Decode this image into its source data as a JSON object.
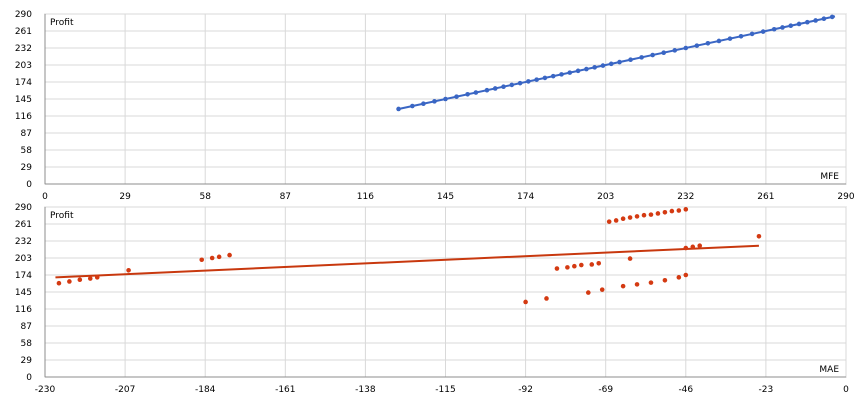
{
  "chart_data": [
    {
      "type": "scatter",
      "ylabel": "Profit",
      "xlabel": "MFE",
      "xlim": [
        0,
        290
      ],
      "ylim": [
        0,
        290
      ],
      "xticks": [
        0,
        29,
        58,
        87,
        116,
        145,
        174,
        203,
        232,
        261,
        290
      ],
      "yticks": [
        0,
        29,
        58,
        87,
        116,
        145,
        174,
        203,
        232,
        261,
        290
      ],
      "grid": true,
      "point_color": "#3a66c4",
      "trend_color": "#3a66c4",
      "trend": {
        "x": [
          128,
          286
        ],
        "y": [
          128,
          286
        ]
      },
      "points": [
        {
          "x": 128,
          "y": 128
        },
        {
          "x": 133,
          "y": 133
        },
        {
          "x": 137,
          "y": 137
        },
        {
          "x": 141,
          "y": 141
        },
        {
          "x": 145,
          "y": 145
        },
        {
          "x": 149,
          "y": 149
        },
        {
          "x": 153,
          "y": 153
        },
        {
          "x": 156,
          "y": 156
        },
        {
          "x": 160,
          "y": 160
        },
        {
          "x": 163,
          "y": 163
        },
        {
          "x": 166,
          "y": 166
        },
        {
          "x": 169,
          "y": 169
        },
        {
          "x": 172,
          "y": 172
        },
        {
          "x": 175,
          "y": 175
        },
        {
          "x": 178,
          "y": 178
        },
        {
          "x": 181,
          "y": 181
        },
        {
          "x": 184,
          "y": 184
        },
        {
          "x": 187,
          "y": 187
        },
        {
          "x": 190,
          "y": 190
        },
        {
          "x": 193,
          "y": 193
        },
        {
          "x": 196,
          "y": 196
        },
        {
          "x": 199,
          "y": 199
        },
        {
          "x": 202,
          "y": 202
        },
        {
          "x": 205,
          "y": 205
        },
        {
          "x": 208,
          "y": 208
        },
        {
          "x": 212,
          "y": 212
        },
        {
          "x": 216,
          "y": 216
        },
        {
          "x": 220,
          "y": 220
        },
        {
          "x": 224,
          "y": 224
        },
        {
          "x": 228,
          "y": 228
        },
        {
          "x": 232,
          "y": 232
        },
        {
          "x": 236,
          "y": 236
        },
        {
          "x": 240,
          "y": 240
        },
        {
          "x": 244,
          "y": 244
        },
        {
          "x": 248,
          "y": 248
        },
        {
          "x": 252,
          "y": 252
        },
        {
          "x": 256,
          "y": 256
        },
        {
          "x": 260,
          "y": 260
        },
        {
          "x": 264,
          "y": 264
        },
        {
          "x": 267,
          "y": 267
        },
        {
          "x": 270,
          "y": 270
        },
        {
          "x": 273,
          "y": 273
        },
        {
          "x": 276,
          "y": 276
        },
        {
          "x": 279,
          "y": 279
        },
        {
          "x": 282,
          "y": 282
        },
        {
          "x": 285,
          "y": 285
        }
      ]
    },
    {
      "type": "scatter",
      "ylabel": "Profit",
      "xlabel": "MAE",
      "xlim": [
        -230,
        0
      ],
      "ylim": [
        0,
        290
      ],
      "xticks": [
        -230,
        -207,
        -184,
        -161,
        -138,
        -115,
        -92,
        -69,
        -46,
        -23,
        0
      ],
      "yticks": [
        0,
        29,
        58,
        87,
        116,
        145,
        174,
        203,
        232,
        261,
        290
      ],
      "grid": true,
      "point_color": "#d43a12",
      "trend_color": "#c8380e",
      "trend": {
        "x": [
          -227,
          -25
        ],
        "y": [
          170,
          224
        ]
      },
      "points": [
        {
          "x": -226,
          "y": 160
        },
        {
          "x": -223,
          "y": 163
        },
        {
          "x": -220,
          "y": 166
        },
        {
          "x": -217,
          "y": 168
        },
        {
          "x": -215,
          "y": 170
        },
        {
          "x": -206,
          "y": 182
        },
        {
          "x": -185,
          "y": 200
        },
        {
          "x": -182,
          "y": 203
        },
        {
          "x": -180,
          "y": 205
        },
        {
          "x": -177,
          "y": 208
        },
        {
          "x": -92,
          "y": 128
        },
        {
          "x": -86,
          "y": 134
        },
        {
          "x": -83,
          "y": 185
        },
        {
          "x": -80,
          "y": 187
        },
        {
          "x": -78,
          "y": 189
        },
        {
          "x": -76,
          "y": 191
        },
        {
          "x": -74,
          "y": 144
        },
        {
          "x": -73,
          "y": 192
        },
        {
          "x": -71,
          "y": 194
        },
        {
          "x": -70,
          "y": 149
        },
        {
          "x": -68,
          "y": 265
        },
        {
          "x": -66,
          "y": 267
        },
        {
          "x": -64,
          "y": 270
        },
        {
          "x": -64,
          "y": 155
        },
        {
          "x": -62,
          "y": 272
        },
        {
          "x": -62,
          "y": 202
        },
        {
          "x": -60,
          "y": 274
        },
        {
          "x": -60,
          "y": 158
        },
        {
          "x": -58,
          "y": 276
        },
        {
          "x": -56,
          "y": 277
        },
        {
          "x": -56,
          "y": 161
        },
        {
          "x": -54,
          "y": 279
        },
        {
          "x": -52,
          "y": 281
        },
        {
          "x": -52,
          "y": 165
        },
        {
          "x": -50,
          "y": 283
        },
        {
          "x": -48,
          "y": 284
        },
        {
          "x": -48,
          "y": 170
        },
        {
          "x": -46,
          "y": 286
        },
        {
          "x": -46,
          "y": 174
        },
        {
          "x": -46,
          "y": 220
        },
        {
          "x": -44,
          "y": 222
        },
        {
          "x": -42,
          "y": 224
        },
        {
          "x": -25,
          "y": 240
        }
      ]
    }
  ]
}
